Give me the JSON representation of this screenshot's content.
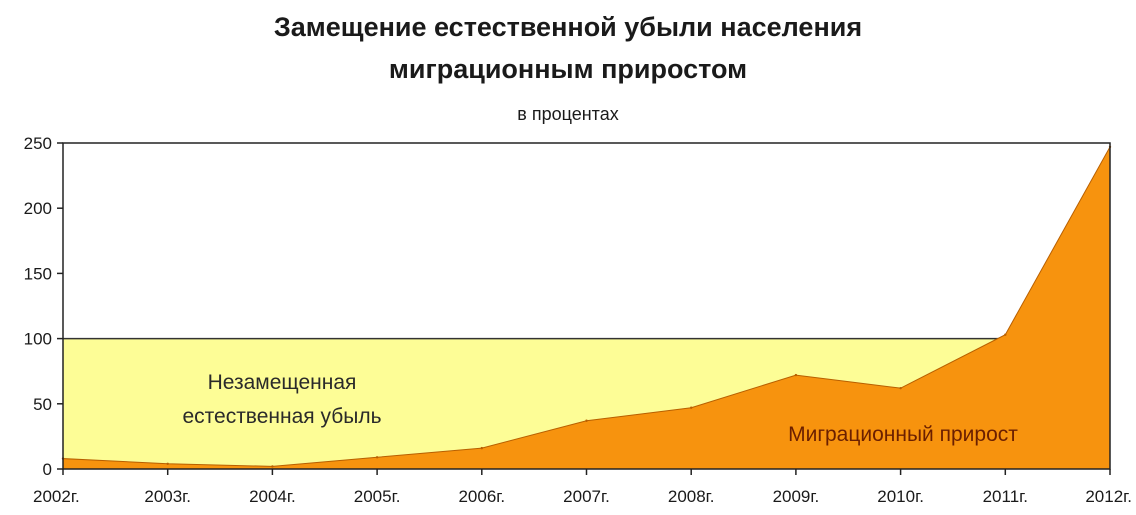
{
  "chart_data": {
    "type": "area",
    "title_line1": "Замещение естественной убыли населения",
    "title_line2": "миграционным приростом",
    "subtitle": "в процентах",
    "categories": [
      "2002г.",
      "2003г.",
      "2004г.",
      "2005г.",
      "2006г.",
      "2007г.",
      "2008г.",
      "2009г.",
      "2010г.",
      "2011г.",
      "2012г."
    ],
    "yticks": [
      "0",
      "50",
      "100",
      "150",
      "200",
      "250"
    ],
    "ylim": [
      0,
      250
    ],
    "series": [
      {
        "name": "Миграционный прирост",
        "values": [
          8,
          4,
          2,
          9,
          16,
          37,
          47,
          72,
          62,
          103,
          247
        ],
        "color": "#f7930e"
      }
    ],
    "baseline": {
      "value": 100,
      "color": "#fdfd96",
      "name": "Незамещенная естественная убыль"
    },
    "annotations": {
      "unreplaced_line1": "Незамещенная",
      "unreplaced_line2": "естественная убыль",
      "migration": "Миграционный прирост"
    }
  }
}
